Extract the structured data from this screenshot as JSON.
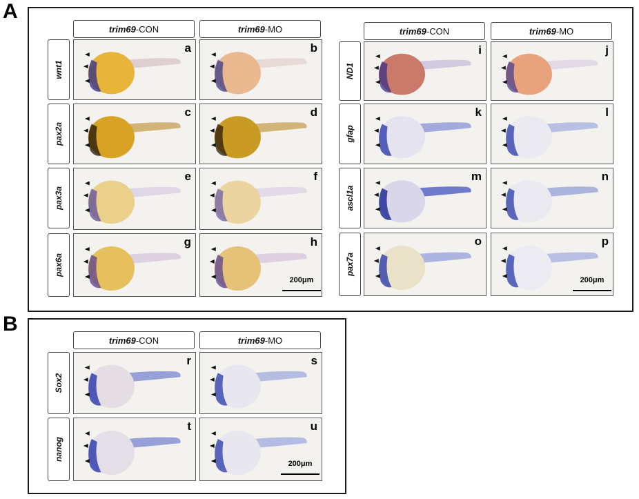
{
  "panels": [
    {
      "letter": "A",
      "id": "A"
    },
    {
      "letter": "B",
      "id": "B"
    }
  ],
  "headers": {
    "con_gene": "trim69",
    "con_suffix": "-CON",
    "mo_gene": "trim69",
    "mo_suffix": "-MO"
  },
  "rows": {
    "wnt1": "wnt1",
    "pax2a": "pax2a",
    "pax3a": "pax3a",
    "pax6a": "pax6a",
    "nd1": "ND1",
    "gfap": "gfap",
    "ascl1a": "ascl1a",
    "pax7a": "pax7a",
    "sox2": "Sox2",
    "nanog": "nanog"
  },
  "cells": {
    "a": {
      "letter": "a",
      "stain": "#2f2a8a",
      "yolk": "#e8b43a",
      "embryo": "#d9c6c9"
    },
    "b": {
      "letter": "b",
      "stain": "#3c3a8a",
      "yolk": "#e9b88f",
      "embryo": "#e3d3d1"
    },
    "c": {
      "letter": "c",
      "stain": "#1d1307",
      "yolk": "#d8a325",
      "embryo": "#c9a35a"
    },
    "d": {
      "letter": "d",
      "stain": "#2a1c08",
      "yolk": "#c99a24",
      "embryo": "#c9a35a"
    },
    "e": {
      "letter": "e",
      "stain": "#5c4c9b",
      "yolk": "#ebd08c",
      "embryo": "#d9cfe2"
    },
    "f": {
      "letter": "f",
      "stain": "#6c5fa8",
      "yolk": "#ecd4a0",
      "embryo": "#ddd5e5"
    },
    "g": {
      "letter": "g",
      "stain": "#5a3f92",
      "yolk": "#e7c05e",
      "embryo": "#d6c7dd"
    },
    "h": {
      "letter": "h",
      "stain": "#5a3f92",
      "yolk": "#e6c278",
      "embryo": "#d6c7dd"
    },
    "i": {
      "letter": "i",
      "stain": "#3a2f86",
      "yolk": "#c97a6a",
      "embryo": "#c9bfd9"
    },
    "j": {
      "letter": "j",
      "stain": "#4a3f8c",
      "yolk": "#e8a37c",
      "embryo": "#dcd3e3"
    },
    "k": {
      "letter": "k",
      "stain": "#2232a8",
      "yolk": "#e5e3ef",
      "embryo": "#8d97d6"
    },
    "l": {
      "letter": "l",
      "stain": "#2a3aa8",
      "yolk": "#eceaf1",
      "embryo": "#a8b1df"
    },
    "m": {
      "letter": "m",
      "stain": "#0c1a8c",
      "yolk": "#d8d6e8",
      "embryo": "#4e5cc0"
    },
    "n": {
      "letter": "n",
      "stain": "#2a3aa8",
      "yolk": "#ebe9f0",
      "embryo": "#9aa4da"
    },
    "o": {
      "letter": "o",
      "stain": "#2232a8",
      "yolk": "#e9e2c9",
      "embryo": "#9ba4db"
    },
    "p": {
      "letter": "p",
      "stain": "#2a3aa8",
      "yolk": "#ecebf1",
      "embryo": "#a9b1df"
    },
    "r": {
      "letter": "r",
      "stain": "#1b2aa6",
      "yolk": "#e4dde3",
      "embryo": "#7f8bd2"
    },
    "s": {
      "letter": "s",
      "stain": "#2838a8",
      "yolk": "#e8e6ee",
      "embryo": "#a5aedf"
    },
    "t": {
      "letter": "t",
      "stain": "#1b2aa6",
      "yolk": "#e4dfe7",
      "embryo": "#7f8bd2"
    },
    "u": {
      "letter": "u",
      "stain": "#2838a8",
      "yolk": "#e8e6ee",
      "embryo": "#a5aedf"
    }
  },
  "scalebar": "200μm"
}
